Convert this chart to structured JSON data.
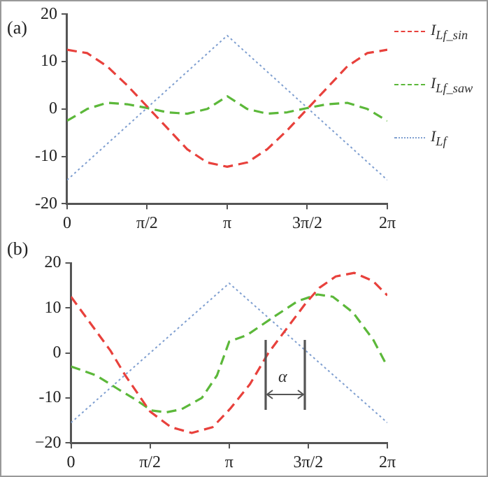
{
  "chart_data": [
    {
      "type": "line",
      "title": "(a)",
      "legend": "right",
      "grid": false,
      "xlim": [
        0,
        6.2832
      ],
      "xticks": [
        0,
        {
          "value": 1.5708,
          "label": "π/2"
        },
        {
          "value": 3.1416,
          "label": "π"
        },
        {
          "value": 4.7124,
          "label": "3π/2"
        },
        {
          "value": 6.2832,
          "label": "2π"
        }
      ],
      "ylim": [
        -20,
        20
      ],
      "yticks": [
        -20,
        -10,
        0,
        10,
        20
      ],
      "series": [
        {
          "name": "I$_{Lf_sin}$",
          "color": "#e8413c",
          "line_style": "dashed",
          "x": [
            0,
            0.3927,
            0.7854,
            1.1781,
            1.5708,
            1.9635,
            2.3562,
            2.7489,
            3.1416,
            3.5343,
            3.927,
            4.3197,
            4.7124,
            5.1051,
            5.4978,
            5.8905,
            6.2832
          ],
          "values": [
            12.5,
            11.8,
            9,
            5,
            0.5,
            -4,
            -8.5,
            -11.3,
            -12.2,
            -11.3,
            -8.5,
            -4.5,
            0,
            4.5,
            9,
            11.8,
            12.5
          ]
        },
        {
          "name": "I$_{Lf_saw}$",
          "color": "#5cb83a",
          "line_style": "dashed",
          "x": [
            0,
            0.3927,
            0.7854,
            1.1781,
            1.5708,
            1.9635,
            2.3562,
            2.7489,
            3.1416,
            3.5343,
            3.927,
            4.3197,
            4.7124,
            5.1051,
            5.4978,
            5.8905,
            6.2832
          ],
          "values": [
            -2.5,
            0,
            1.3,
            1,
            0.2,
            -0.7,
            -1,
            0,
            2.7,
            0,
            -1,
            -0.7,
            0.2,
            1,
            1.3,
            0,
            -2.5
          ]
        },
        {
          "name": "I$_{Lf}$",
          "color": "#7f9fd0",
          "line_style": "dotted",
          "x": [
            0,
            3.1416,
            6.2832
          ],
          "values": [
            -15,
            15.5,
            -15
          ]
        }
      ]
    },
    {
      "type": "line",
      "title": "(b)",
      "grid": false,
      "xlim": [
        0,
        6.2832
      ],
      "xticks": [
        0,
        {
          "value": 1.5708,
          "label": "π/2"
        },
        {
          "value": 3.1416,
          "label": "π"
        },
        {
          "value": 4.7124,
          "label": "3π/2"
        },
        {
          "value": 6.2832,
          "label": "2π"
        }
      ],
      "ylim": [
        -20,
        20
      ],
      "yticks": [
        {
          "value": -20,
          "label": "−20"
        },
        -10,
        0,
        10,
        20
      ],
      "annotations": [
        "α"
      ],
      "series": [
        {
          "color": "#e8413c",
          "line_style": "dashed",
          "x": [
            0,
            0.784,
            1.079,
            1.568,
            1.984,
            2.399,
            2.814,
            3.155,
            3.552,
            3.921,
            4.29,
            4.659,
            4.936,
            5.259,
            5.628,
            5.997,
            6.2832
          ],
          "values": [
            12.5,
            0.5,
            -5,
            -13,
            -16.5,
            -17.8,
            -16.5,
            -12.5,
            -7,
            0,
            5.5,
            11,
            14.5,
            17,
            17.8,
            16,
            12.8
          ]
        },
        {
          "color": "#5cb83a",
          "line_style": "dashed",
          "x": [
            0,
            0.5,
            0.9,
            1.3,
            1.6,
            1.9,
            2.2,
            2.6,
            2.9,
            3.1416,
            3.5,
            4,
            4.5,
            4.9,
            5.2,
            5.6,
            6,
            6.2832
          ],
          "values": [
            -3,
            -5,
            -7.8,
            -10.5,
            -12.8,
            -13.2,
            -12.5,
            -10,
            -5,
            2.5,
            4,
            7.8,
            11.5,
            13,
            12.5,
            9,
            3,
            -3
          ]
        },
        {
          "color": "#7f9fd0",
          "line_style": "dotted",
          "x": [
            0,
            3.1416,
            6.2832
          ],
          "values": [
            -15.5,
            15.5,
            -15.5
          ]
        }
      ]
    }
  ]
}
